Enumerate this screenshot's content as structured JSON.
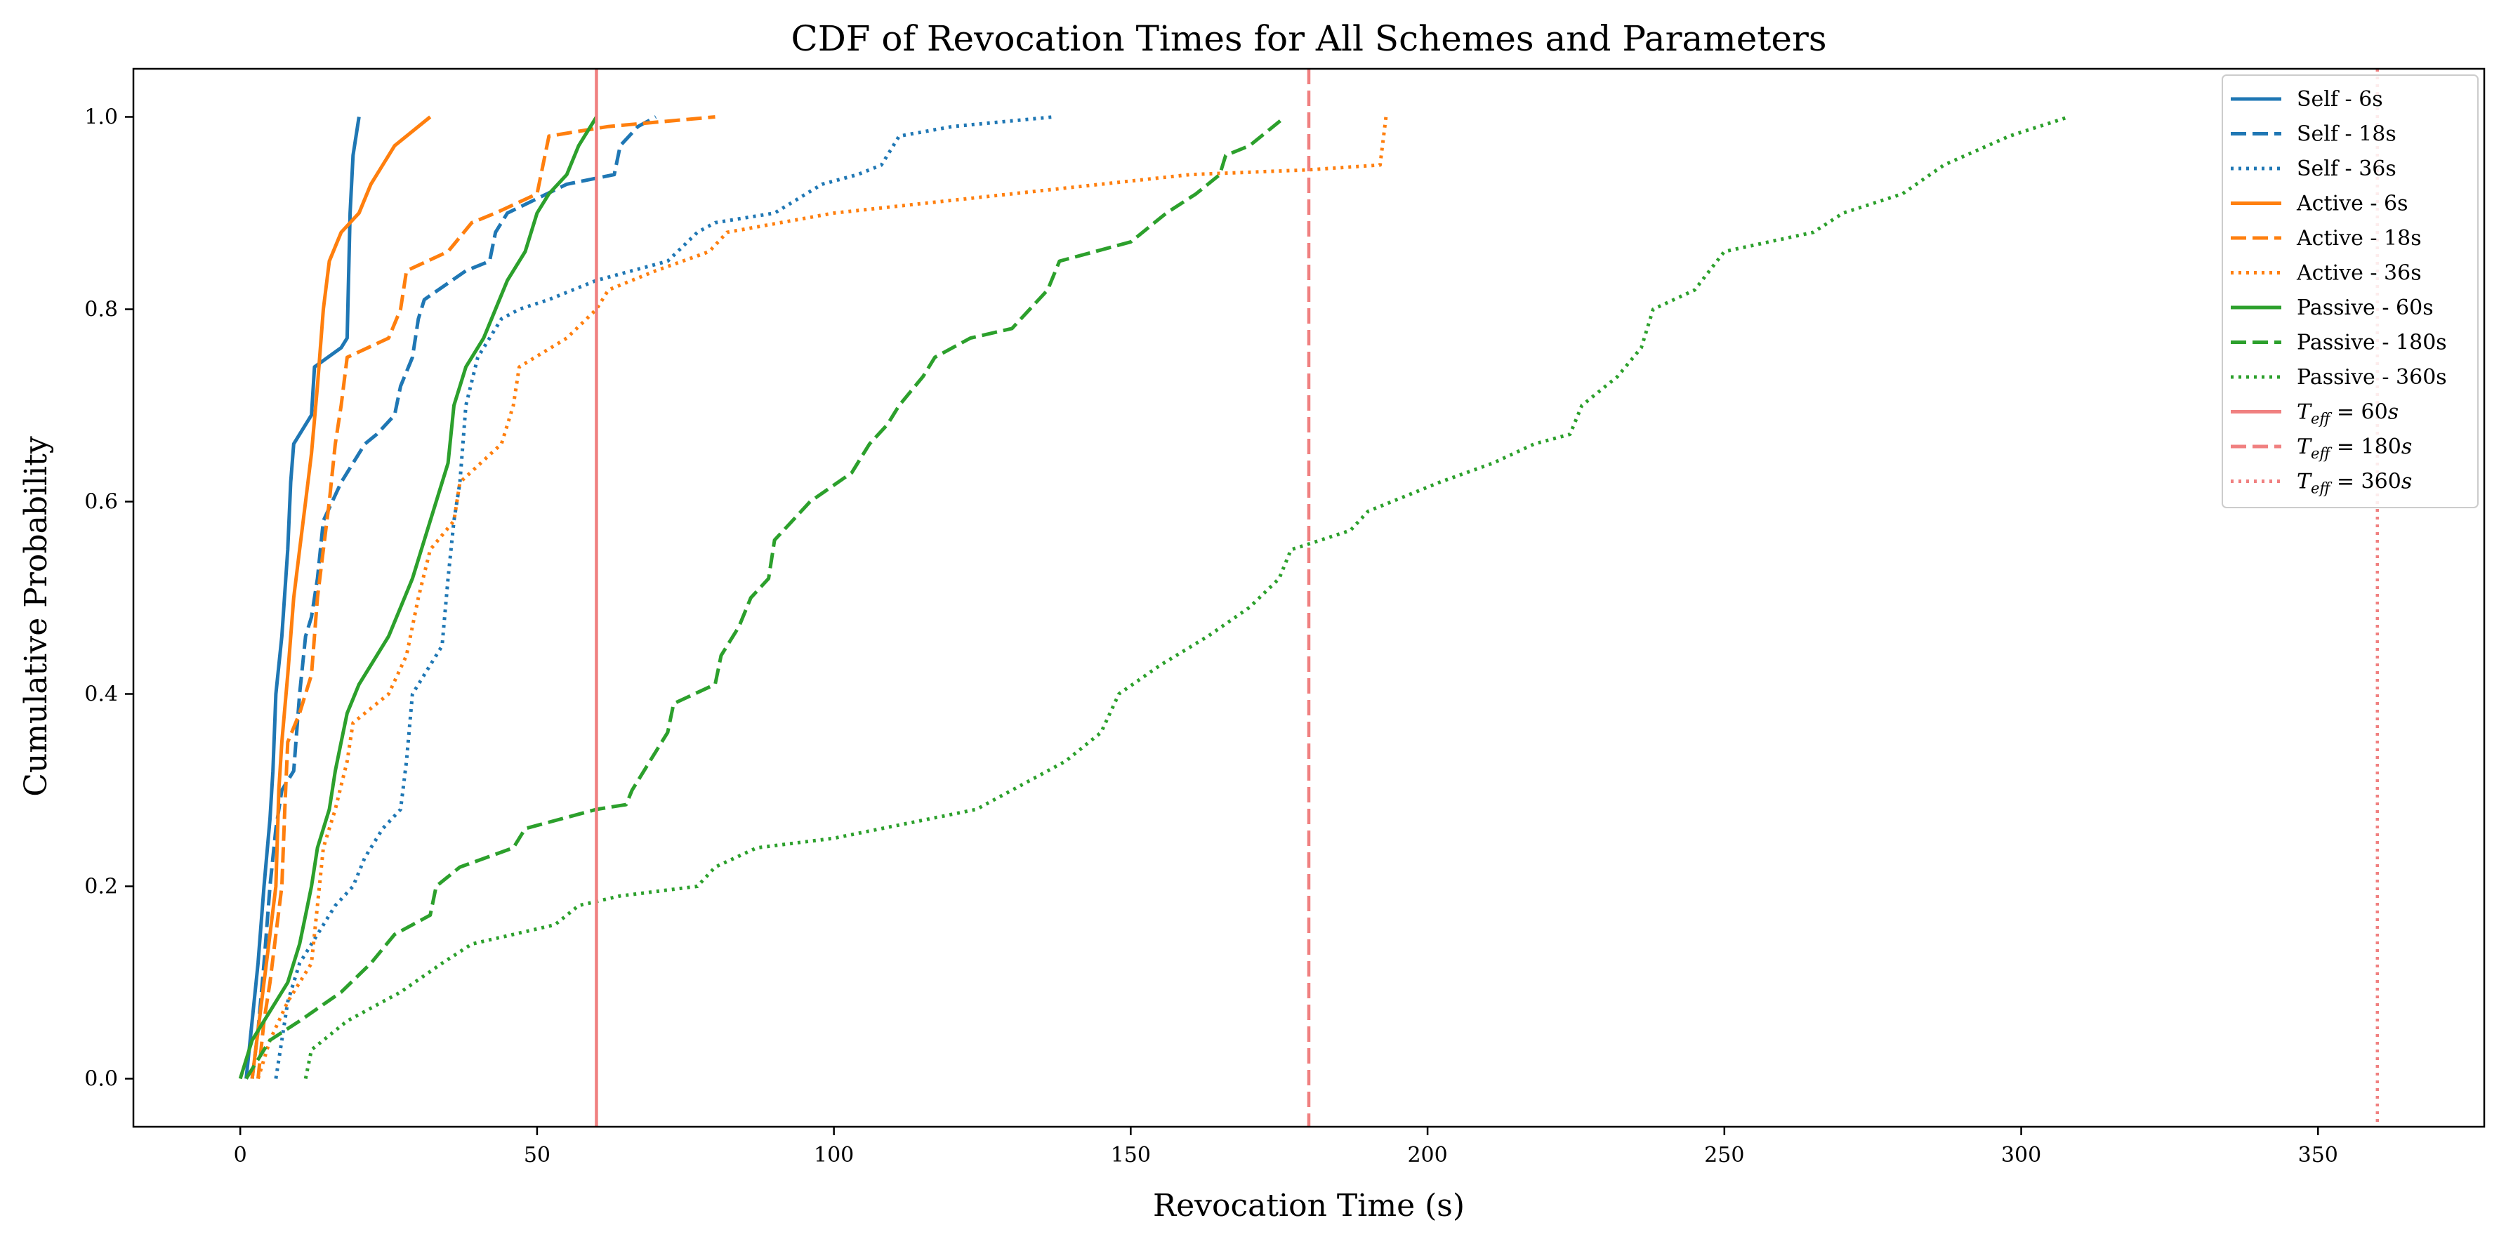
{
  "chart_data": {
    "type": "line",
    "title": "CDF of Revocation Times for All Schemes and Parameters",
    "xlabel": "Revocation Time (s)",
    "ylabel": "Cumulative Probability",
    "xlim": [
      -18,
      378
    ],
    "ylim": [
      -0.05,
      1.05
    ],
    "xticks": [
      0,
      50,
      100,
      150,
      200,
      250,
      300,
      350
    ],
    "yticks": [
      0.0,
      0.2,
      0.4,
      0.6,
      0.8,
      1.0
    ],
    "grid": false,
    "legend_position": "top-right",
    "series": [
      {
        "name": "Self - 6s",
        "color": "#1f77b4",
        "dash": "solid",
        "points": [
          [
            1,
            0
          ],
          [
            2,
            0.06
          ],
          [
            3,
            0.12
          ],
          [
            4,
            0.2
          ],
          [
            5,
            0.27
          ],
          [
            5.5,
            0.32
          ],
          [
            6,
            0.4
          ],
          [
            7,
            0.46
          ],
          [
            8,
            0.55
          ],
          [
            8.5,
            0.62
          ],
          [
            9,
            0.66
          ],
          [
            12,
            0.69
          ],
          [
            12.5,
            0.74
          ],
          [
            17,
            0.76
          ],
          [
            18,
            0.77
          ],
          [
            18.5,
            0.9
          ],
          [
            19,
            0.96
          ],
          [
            20,
            1.0
          ]
        ]
      },
      {
        "name": "Self - 18s",
        "color": "#1f77b4",
        "dash": "dashed",
        "points": [
          [
            2,
            0
          ],
          [
            3,
            0.05
          ],
          [
            4,
            0.12
          ],
          [
            5,
            0.2
          ],
          [
            6,
            0.26
          ],
          [
            7,
            0.3
          ],
          [
            9,
            0.32
          ],
          [
            10,
            0.4
          ],
          [
            11,
            0.46
          ],
          [
            12,
            0.48
          ],
          [
            13,
            0.52
          ],
          [
            14,
            0.58
          ],
          [
            17,
            0.62
          ],
          [
            19,
            0.64
          ],
          [
            21,
            0.66
          ],
          [
            23,
            0.67
          ],
          [
            26,
            0.69
          ],
          [
            27,
            0.72
          ],
          [
            29,
            0.75
          ],
          [
            30,
            0.79
          ],
          [
            31,
            0.81
          ],
          [
            38,
            0.84
          ],
          [
            42,
            0.85
          ],
          [
            43,
            0.88
          ],
          [
            45,
            0.9
          ],
          [
            55,
            0.93
          ],
          [
            63,
            0.94
          ],
          [
            64,
            0.97
          ],
          [
            67,
            0.99
          ],
          [
            70,
            1.0
          ]
        ]
      },
      {
        "name": "Self - 36s",
        "color": "#1f77b4",
        "dash": "dotted",
        "points": [
          [
            6,
            0
          ],
          [
            7,
            0.04
          ],
          [
            8,
            0.08
          ],
          [
            10,
            0.12
          ],
          [
            13,
            0.15
          ],
          [
            16,
            0.18
          ],
          [
            19,
            0.2
          ],
          [
            21,
            0.23
          ],
          [
            24,
            0.26
          ],
          [
            27,
            0.28
          ],
          [
            28,
            0.33
          ],
          [
            29,
            0.4
          ],
          [
            31,
            0.42
          ],
          [
            34,
            0.45
          ],
          [
            35,
            0.52
          ],
          [
            36,
            0.58
          ],
          [
            37,
            0.62
          ],
          [
            38,
            0.7
          ],
          [
            40,
            0.75
          ],
          [
            42,
            0.77
          ],
          [
            44,
            0.79
          ],
          [
            47,
            0.8
          ],
          [
            52,
            0.81
          ],
          [
            60,
            0.83
          ],
          [
            72,
            0.85
          ],
          [
            77,
            0.88
          ],
          [
            80,
            0.89
          ],
          [
            90,
            0.9
          ],
          [
            98,
            0.93
          ],
          [
            104,
            0.94
          ],
          [
            108,
            0.95
          ],
          [
            111,
            0.98
          ],
          [
            120,
            0.99
          ],
          [
            137,
            1.0
          ]
        ]
      },
      {
        "name": "Active - 6s",
        "color": "#ff7f0e",
        "dash": "solid",
        "points": [
          [
            2,
            0
          ],
          [
            3,
            0.05
          ],
          [
            4,
            0.1
          ],
          [
            5,
            0.15
          ],
          [
            6,
            0.2
          ],
          [
            6.5,
            0.3
          ],
          [
            7,
            0.35
          ],
          [
            8,
            0.42
          ],
          [
            9,
            0.5
          ],
          [
            10,
            0.55
          ],
          [
            11,
            0.6
          ],
          [
            12,
            0.65
          ],
          [
            13,
            0.72
          ],
          [
            14,
            0.8
          ],
          [
            15,
            0.85
          ],
          [
            17,
            0.88
          ],
          [
            20,
            0.9
          ],
          [
            22,
            0.93
          ],
          [
            24,
            0.95
          ],
          [
            26,
            0.97
          ],
          [
            32,
            1.0
          ]
        ]
      },
      {
        "name": "Active - 18s",
        "color": "#ff7f0e",
        "dash": "dashed",
        "points": [
          [
            3,
            0
          ],
          [
            4,
            0.06
          ],
          [
            5,
            0.1
          ],
          [
            6,
            0.15
          ],
          [
            7,
            0.2
          ],
          [
            7.5,
            0.28
          ],
          [
            8,
            0.35
          ],
          [
            10,
            0.38
          ],
          [
            12,
            0.42
          ],
          [
            13,
            0.5
          ],
          [
            14,
            0.55
          ],
          [
            15,
            0.6
          ],
          [
            16,
            0.66
          ],
          [
            17,
            0.7
          ],
          [
            18,
            0.75
          ],
          [
            25,
            0.77
          ],
          [
            27,
            0.8
          ],
          [
            28,
            0.84
          ],
          [
            35,
            0.86
          ],
          [
            39,
            0.89
          ],
          [
            43,
            0.9
          ],
          [
            50,
            0.92
          ],
          [
            52,
            0.98
          ],
          [
            62,
            0.99
          ],
          [
            80,
            1.0
          ]
        ]
      },
      {
        "name": "Active - 36s",
        "color": "#ff7f0e",
        "dash": "dotted",
        "points": [
          [
            3,
            0
          ],
          [
            5,
            0.04
          ],
          [
            8,
            0.08
          ],
          [
            12,
            0.12
          ],
          [
            13,
            0.18
          ],
          [
            14,
            0.24
          ],
          [
            16,
            0.28
          ],
          [
            18,
            0.33
          ],
          [
            19,
            0.37
          ],
          [
            25,
            0.4
          ],
          [
            28,
            0.44
          ],
          [
            30,
            0.5
          ],
          [
            32,
            0.55
          ],
          [
            36,
            0.58
          ],
          [
            37,
            0.62
          ],
          [
            44,
            0.66
          ],
          [
            46,
            0.7
          ],
          [
            47,
            0.74
          ],
          [
            55,
            0.77
          ],
          [
            60,
            0.8
          ],
          [
            62,
            0.82
          ],
          [
            70,
            0.84
          ],
          [
            79,
            0.86
          ],
          [
            82,
            0.88
          ],
          [
            100,
            0.9
          ],
          [
            130,
            0.92
          ],
          [
            160,
            0.94
          ],
          [
            180,
            0.945
          ],
          [
            192,
            0.95
          ],
          [
            193,
            1.0
          ]
        ]
      },
      {
        "name": "Passive - 60s",
        "color": "#2ca02c",
        "dash": "solid",
        "points": [
          [
            0,
            0
          ],
          [
            2,
            0.04
          ],
          [
            4,
            0.06
          ],
          [
            8,
            0.1
          ],
          [
            10,
            0.14
          ],
          [
            11,
            0.17
          ],
          [
            12,
            0.2
          ],
          [
            13,
            0.24
          ],
          [
            15,
            0.28
          ],
          [
            16,
            0.32
          ],
          [
            17,
            0.35
          ],
          [
            18,
            0.38
          ],
          [
            20,
            0.41
          ],
          [
            22,
            0.43
          ],
          [
            25,
            0.46
          ],
          [
            27,
            0.49
          ],
          [
            29,
            0.52
          ],
          [
            31,
            0.56
          ],
          [
            33,
            0.6
          ],
          [
            35,
            0.64
          ],
          [
            36,
            0.7
          ],
          [
            38,
            0.74
          ],
          [
            41,
            0.77
          ],
          [
            43,
            0.8
          ],
          [
            45,
            0.83
          ],
          [
            48,
            0.86
          ],
          [
            50,
            0.9
          ],
          [
            52,
            0.92
          ],
          [
            55,
            0.94
          ],
          [
            57,
            0.97
          ],
          [
            60,
            1.0
          ]
        ]
      },
      {
        "name": "Passive - 180s",
        "color": "#2ca02c",
        "dash": "dashed",
        "points": [
          [
            1,
            0
          ],
          [
            5,
            0.04
          ],
          [
            10,
            0.06
          ],
          [
            17,
            0.09
          ],
          [
            22,
            0.12
          ],
          [
            26,
            0.15
          ],
          [
            32,
            0.17
          ],
          [
            33,
            0.2
          ],
          [
            37,
            0.22
          ],
          [
            46,
            0.24
          ],
          [
            48,
            0.26
          ],
          [
            60,
            0.28
          ],
          [
            65,
            0.285
          ],
          [
            66,
            0.3
          ],
          [
            69,
            0.33
          ],
          [
            72,
            0.36
          ],
          [
            73,
            0.39
          ],
          [
            80,
            0.41
          ],
          [
            81,
            0.44
          ],
          [
            84,
            0.47
          ],
          [
            86,
            0.5
          ],
          [
            89,
            0.52
          ],
          [
            90,
            0.56
          ],
          [
            96,
            0.6
          ],
          [
            103,
            0.63
          ],
          [
            106,
            0.66
          ],
          [
            109,
            0.68
          ],
          [
            111,
            0.7
          ],
          [
            115,
            0.73
          ],
          [
            117,
            0.75
          ],
          [
            123,
            0.77
          ],
          [
            130,
            0.78
          ],
          [
            133,
            0.8
          ],
          [
            136,
            0.82
          ],
          [
            138,
            0.85
          ],
          [
            150,
            0.87
          ],
          [
            156,
            0.9
          ],
          [
            161,
            0.92
          ],
          [
            165,
            0.94
          ],
          [
            166,
            0.96
          ],
          [
            170,
            0.97
          ],
          [
            176,
            1.0
          ]
        ]
      },
      {
        "name": "Passive - 360s",
        "color": "#2ca02c",
        "dash": "dotted",
        "points": [
          [
            11,
            0
          ],
          [
            12,
            0.03
          ],
          [
            18,
            0.06
          ],
          [
            27,
            0.09
          ],
          [
            34,
            0.12
          ],
          [
            39,
            0.14
          ],
          [
            53,
            0.16
          ],
          [
            57,
            0.18
          ],
          [
            64,
            0.19
          ],
          [
            77,
            0.2
          ],
          [
            80,
            0.22
          ],
          [
            87,
            0.24
          ],
          [
            100,
            0.25
          ],
          [
            124,
            0.28
          ],
          [
            130,
            0.3
          ],
          [
            139,
            0.33
          ],
          [
            145,
            0.36
          ],
          [
            148,
            0.4
          ],
          [
            155,
            0.43
          ],
          [
            163,
            0.46
          ],
          [
            170,
            0.49
          ],
          [
            175,
            0.52
          ],
          [
            177,
            0.55
          ],
          [
            187,
            0.57
          ],
          [
            190,
            0.59
          ],
          [
            202,
            0.62
          ],
          [
            211,
            0.64
          ],
          [
            218,
            0.66
          ],
          [
            224,
            0.67
          ],
          [
            226,
            0.7
          ],
          [
            232,
            0.73
          ],
          [
            236,
            0.76
          ],
          [
            238,
            0.8
          ],
          [
            245,
            0.82
          ],
          [
            250,
            0.86
          ],
          [
            265,
            0.88
          ],
          [
            270,
            0.9
          ],
          [
            280,
            0.92
          ],
          [
            287,
            0.95
          ],
          [
            298,
            0.98
          ],
          [
            308,
            1.0
          ]
        ]
      },
      {
        "name": "$T_{eff} = 60s$",
        "color": "#f08080",
        "dash": "solid",
        "vline": 60
      },
      {
        "name": "$T_{eff} = 180s$",
        "color": "#f08080",
        "dash": "dashed",
        "vline": 180
      },
      {
        "name": "$T_{eff} = 360s$",
        "color": "#f08080",
        "dash": "dotted",
        "vline": 360
      }
    ]
  }
}
